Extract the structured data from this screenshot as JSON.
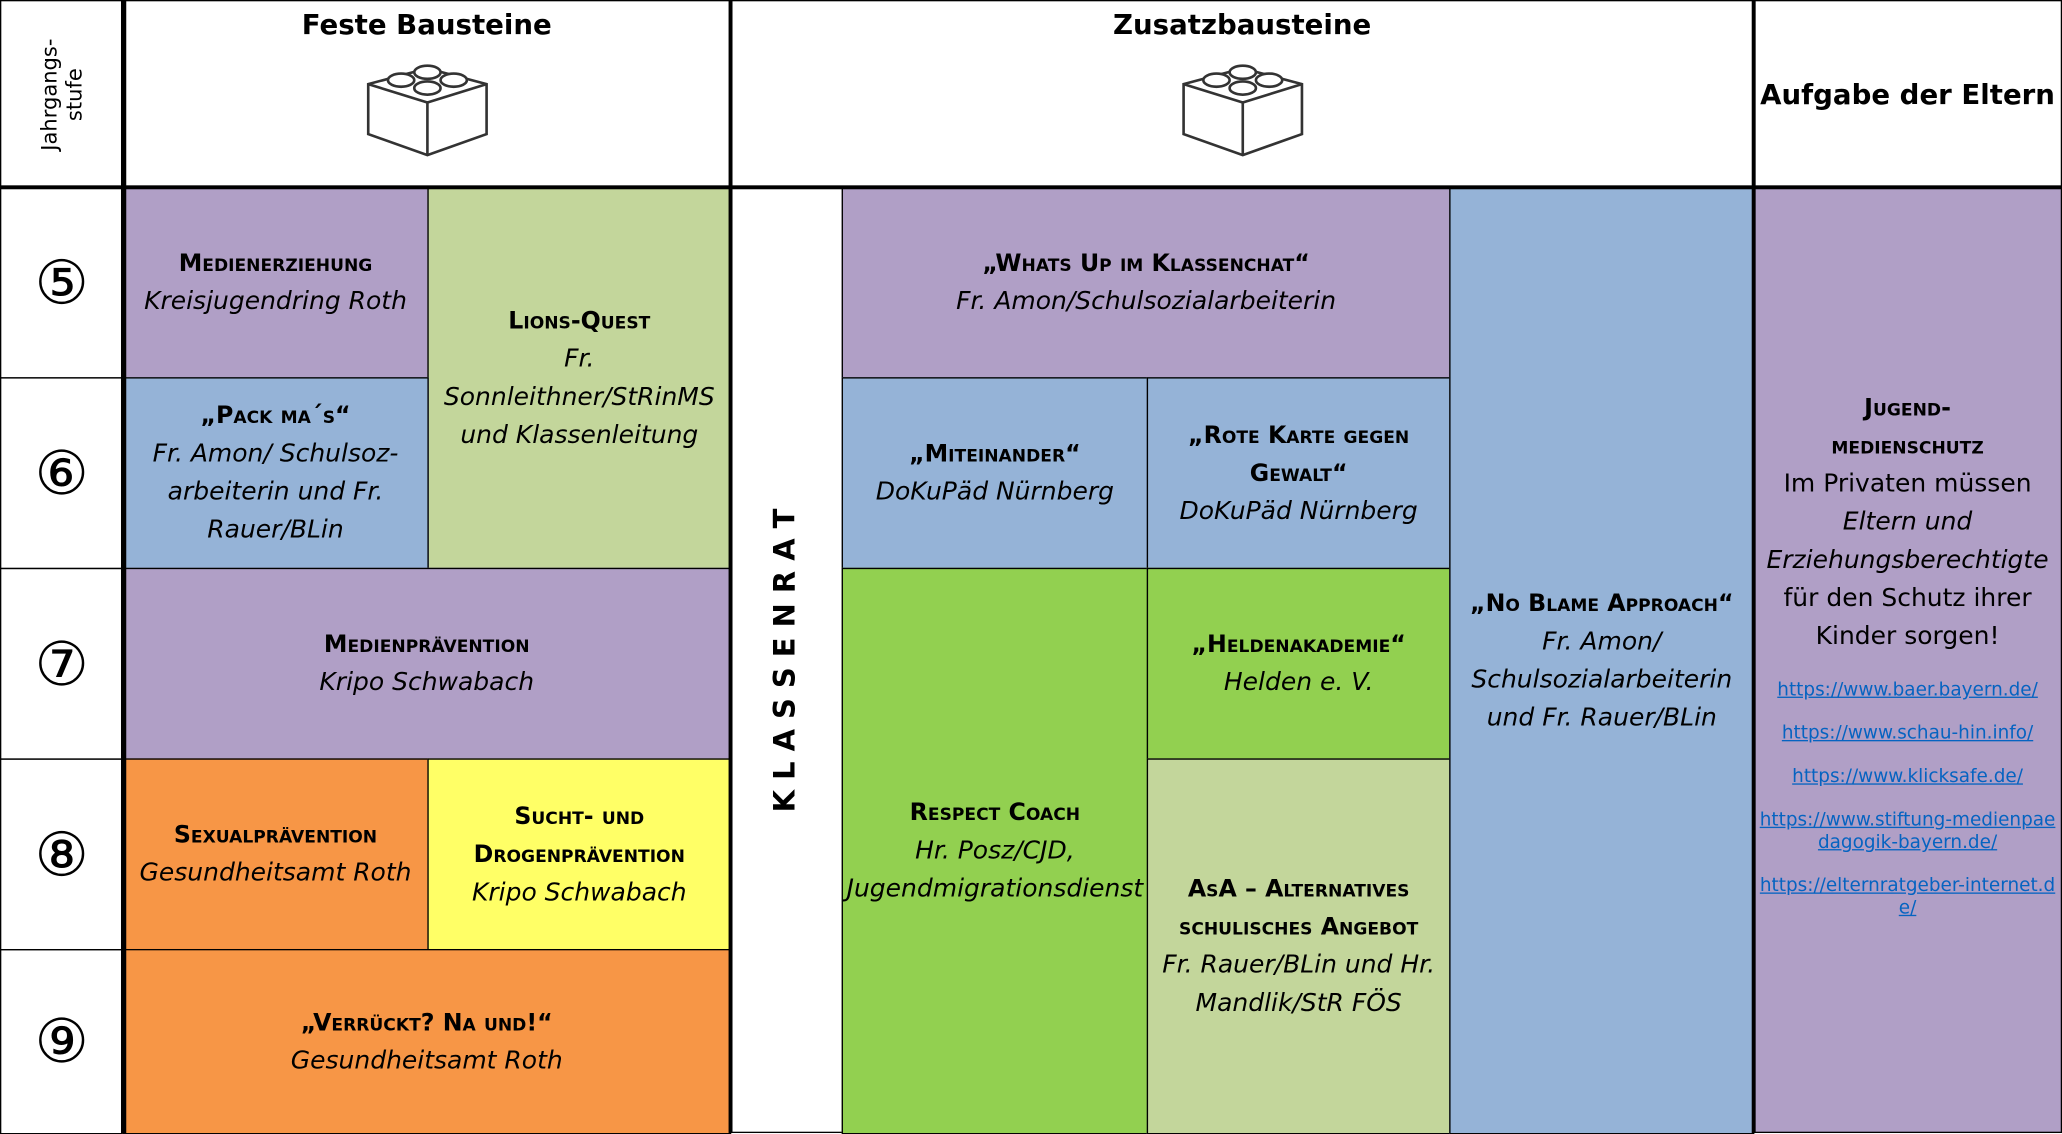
{
  "header": {
    "grade_label": "Jahrgangs-stufe",
    "fixed": "Feste Bausteine",
    "extra": "Zusatzbausteine",
    "parents": "Aufgabe der Eltern"
  },
  "grades": [
    "⑤",
    "⑥",
    "⑦",
    "⑧",
    "⑨"
  ],
  "klassenrat": "K L A S S E N R A T",
  "cells": [
    {
      "title": "Medienerziehung",
      "lines": [
        "Kreisjugendring Roth"
      ]
    },
    {
      "title": "Lions-Quest",
      "lines": [
        "Fr. Sonnleithner/StRinMS und Klassenleitung"
      ]
    },
    {
      "title": "„Pack ma´s“",
      "lines": [
        "Fr. Amon/ Schulsoz-arbeiterin und Fr. Rauer/BLin"
      ]
    },
    {
      "title": "Medienprävention",
      "lines": [
        "Kripo Schwabach"
      ]
    },
    {
      "title": "Sexualprävention",
      "lines": [
        "Gesundheitsamt Roth"
      ]
    },
    {
      "title": "Sucht- und Drogenprävention",
      "lines": [
        "Kripo Schwabach"
      ]
    },
    {
      "title": "„Verrückt? Na und!“",
      "lines": [
        "Gesundheitsamt Roth"
      ]
    },
    {
      "title": "„Whats Up im Klassenchat“",
      "lines": [
        "Fr. Amon/Schulsozialarbeiterin"
      ]
    },
    {
      "title": "„Miteinander“",
      "lines": [
        "DoKuPäd Nürnberg"
      ]
    },
    {
      "title": "„Rote Karte gegen Gewalt“",
      "lines": [
        "DoKuPäd Nürnberg"
      ]
    },
    {
      "title": "Respect Coach",
      "lines": [
        "Hr. Posz/CJD, Jugendmigrationsdienst"
      ]
    },
    {
      "title": "„Heldenakademie“",
      "lines": [
        "Helden e. V."
      ]
    },
    {
      "title": "AsA – Alternatives schulisches Angebot",
      "lines": [
        "Fr. Rauer/BLin und Hr. Mandlik/StR FÖS"
      ]
    },
    {
      "title": "„No Blame Approach“",
      "lines": [
        "Fr. Amon/ Schulsozialarbeiterin und Fr. Rauer/BLin"
      ]
    }
  ],
  "parents": {
    "title": "Jugend-medienschutz",
    "text1": "Im Privaten müssen",
    "text2": "Eltern und Erziehungsberechtigte",
    "text3": "für den Schutz ihrer Kinder sorgen!",
    "links": [
      "https://www.baer.bayern.de/",
      "https://www.schau-hin.info/",
      "https://www.klicksafe.de/",
      "https://www.stiftung-medienpaedagogik-bayern.de/",
      "https://elternratgeber-internet.de/"
    ]
  }
}
